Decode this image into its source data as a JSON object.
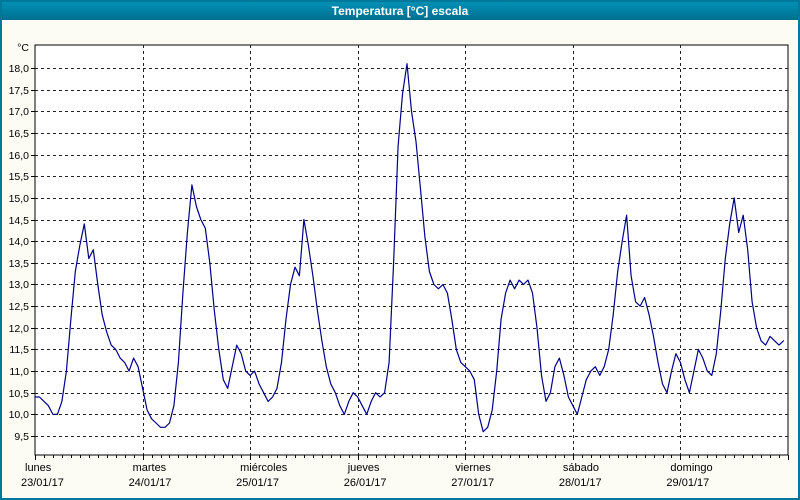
{
  "window": {
    "title": "Temperatura [°C] escala"
  },
  "colors": {
    "titlebar_top": "#0090b4",
    "titlebar_bottom": "#006f8e",
    "window_border": "#00789b",
    "page_bg": "#fcfcf4",
    "plot_bg": "#ffffff",
    "grid": "#222222",
    "axis": "#000000",
    "line": "#00008b",
    "text": "#000000",
    "title_text": "#ffffff"
  },
  "chart_data": {
    "type": "line",
    "title": "Temperatura [°C] escala",
    "y_unit": "°C",
    "ylim": [
      9.5,
      18.0
    ],
    "y_tick_step": 0.5,
    "y_ticks": [
      18.0,
      17.5,
      17.0,
      16.5,
      16.0,
      15.5,
      15.0,
      14.5,
      14.0,
      13.5,
      13.0,
      12.5,
      12.0,
      11.5,
      11.0,
      10.5,
      10.0,
      9.5
    ],
    "y_tick_labels": [
      "18,0",
      "17,5",
      "17,0",
      "16,5",
      "16,0",
      "15,5",
      "15,0",
      "14,5",
      "14,0",
      "13,5",
      "13,0",
      "12,5",
      "12,0",
      "11,5",
      "11,0",
      "10,5",
      "10,0",
      "9,5"
    ],
    "x_days": [
      {
        "name": "lunes",
        "date": "23/01/17"
      },
      {
        "name": "martes",
        "date": "24/01/17"
      },
      {
        "name": "miércoles",
        "date": "25/01/17"
      },
      {
        "name": "jueves",
        "date": "26/01/17"
      },
      {
        "name": "viernes",
        "date": "27/01/17"
      },
      {
        "name": "sábado",
        "date": "28/01/17"
      },
      {
        "name": "domingo",
        "date": "29/01/17"
      }
    ],
    "x_sampling": "hourly",
    "grid": true,
    "legend_position": "none",
    "series": [
      {
        "name": "Temperatura",
        "color": "#00008b",
        "values": [
          10.4,
          10.4,
          10.3,
          10.2,
          10.0,
          10.0,
          10.3,
          11.0,
          12.2,
          13.3,
          13.9,
          14.4,
          13.6,
          13.8,
          13.0,
          12.3,
          11.9,
          11.6,
          11.5,
          11.3,
          11.2,
          11.0,
          11.3,
          11.1,
          10.6,
          10.1,
          9.9,
          9.8,
          9.7,
          9.7,
          9.8,
          10.2,
          11.2,
          12.8,
          14.2,
          15.3,
          14.8,
          14.5,
          14.3,
          13.5,
          12.4,
          11.5,
          10.8,
          10.6,
          11.1,
          11.6,
          11.4,
          11.0,
          10.9,
          11.0,
          10.7,
          10.5,
          10.3,
          10.4,
          10.6,
          11.2,
          12.2,
          13.0,
          13.4,
          13.2,
          14.5,
          13.9,
          13.2,
          12.4,
          11.7,
          11.1,
          10.7,
          10.5,
          10.2,
          10.0,
          10.3,
          10.5,
          10.4,
          10.2,
          10.0,
          10.3,
          10.5,
          10.4,
          10.5,
          11.2,
          13.5,
          16.2,
          17.4,
          18.1,
          17.0,
          16.3,
          15.2,
          14.1,
          13.3,
          13.0,
          12.9,
          13.0,
          12.8,
          12.2,
          11.5,
          11.2,
          11.1,
          11.0,
          10.8,
          10.0,
          9.6,
          9.7,
          10.1,
          11.0,
          12.2,
          12.8,
          13.1,
          12.9,
          13.1,
          13.0,
          13.1,
          12.8,
          12.0,
          10.9,
          10.3,
          10.5,
          11.1,
          11.3,
          10.9,
          10.4,
          10.2,
          10.0,
          10.4,
          10.8,
          11.0,
          11.1,
          10.9,
          11.1,
          11.5,
          12.3,
          13.3,
          14.0,
          14.6,
          13.2,
          12.6,
          12.5,
          12.7,
          12.3,
          11.8,
          11.2,
          10.7,
          10.5,
          11.0,
          11.4,
          11.2,
          10.8,
          10.5,
          11.0,
          11.5,
          11.3,
          11.0,
          10.9,
          11.4,
          12.4,
          13.6,
          14.4,
          15.0,
          14.2,
          14.6,
          13.8,
          12.6,
          12.0,
          11.7,
          11.6,
          11.8,
          11.7,
          11.6,
          11.7
        ]
      }
    ]
  }
}
